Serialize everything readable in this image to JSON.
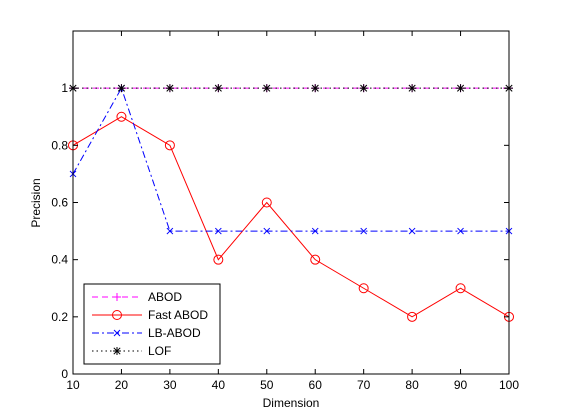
{
  "chart_data": {
    "type": "line",
    "title": "",
    "xlabel": "Dimension",
    "ylabel": "Precision",
    "x": [
      10,
      20,
      30,
      40,
      50,
      60,
      70,
      80,
      90,
      100
    ],
    "xlim": [
      10,
      100
    ],
    "ylim": [
      0,
      1.2
    ],
    "xticks": [
      10,
      20,
      30,
      40,
      50,
      60,
      70,
      80,
      90,
      100
    ],
    "yticks": [
      0,
      0.2,
      0.4,
      0.6,
      0.8,
      1
    ],
    "ytick_labels": [
      "0",
      "0.2",
      "0.4",
      "0.6",
      "0.8",
      "1"
    ],
    "grid": false,
    "legend_position": "bottom-left",
    "series": [
      {
        "name": "ABOD",
        "color": "#ff00ff",
        "line_style": "dashed",
        "marker": "plus",
        "values": [
          1,
          1,
          1,
          1,
          1,
          1,
          1,
          1,
          1,
          1
        ]
      },
      {
        "name": "Fast ABOD",
        "color": "#ff0000",
        "line_style": "solid",
        "marker": "circle",
        "values": [
          0.8,
          0.9,
          0.8,
          0.4,
          0.6,
          0.4,
          0.3,
          0.2,
          0.3,
          0.2
        ]
      },
      {
        "name": "LB-ABOD",
        "color": "#0000ff",
        "line_style": "dashdot",
        "marker": "x",
        "values": [
          0.7,
          1,
          0.5,
          0.5,
          0.5,
          0.5,
          0.5,
          0.5,
          0.5,
          0.5
        ]
      },
      {
        "name": "LOF",
        "color": "#000000",
        "line_style": "dotted",
        "marker": "star",
        "values": [
          1,
          1,
          1,
          1,
          1,
          1,
          1,
          1,
          1,
          1
        ]
      }
    ]
  }
}
